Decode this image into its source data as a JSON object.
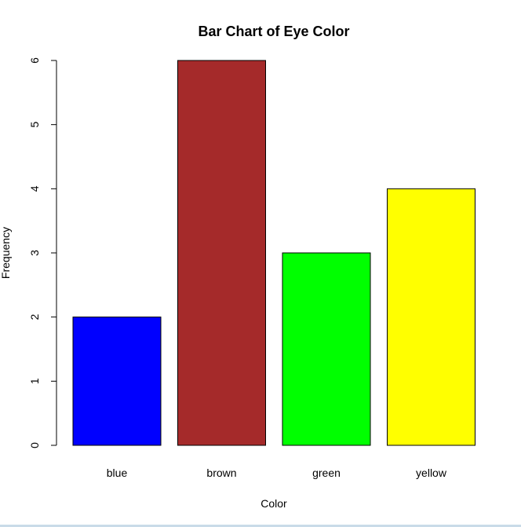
{
  "chart_data": {
    "type": "bar",
    "title": "Bar Chart of Eye Color",
    "xlabel": "Color",
    "ylabel": "Frequency",
    "categories": [
      "blue",
      "brown",
      "green",
      "yellow"
    ],
    "values": [
      2,
      6,
      3,
      4
    ],
    "colors": [
      "#0000ff",
      "#a52a2a",
      "#00ff00",
      "#ffff00"
    ],
    "ylim": [
      0,
      6
    ],
    "yticks": [
      "0",
      "1",
      "2",
      "3",
      "4",
      "5",
      "6"
    ],
    "grid": false,
    "legend": "none"
  }
}
